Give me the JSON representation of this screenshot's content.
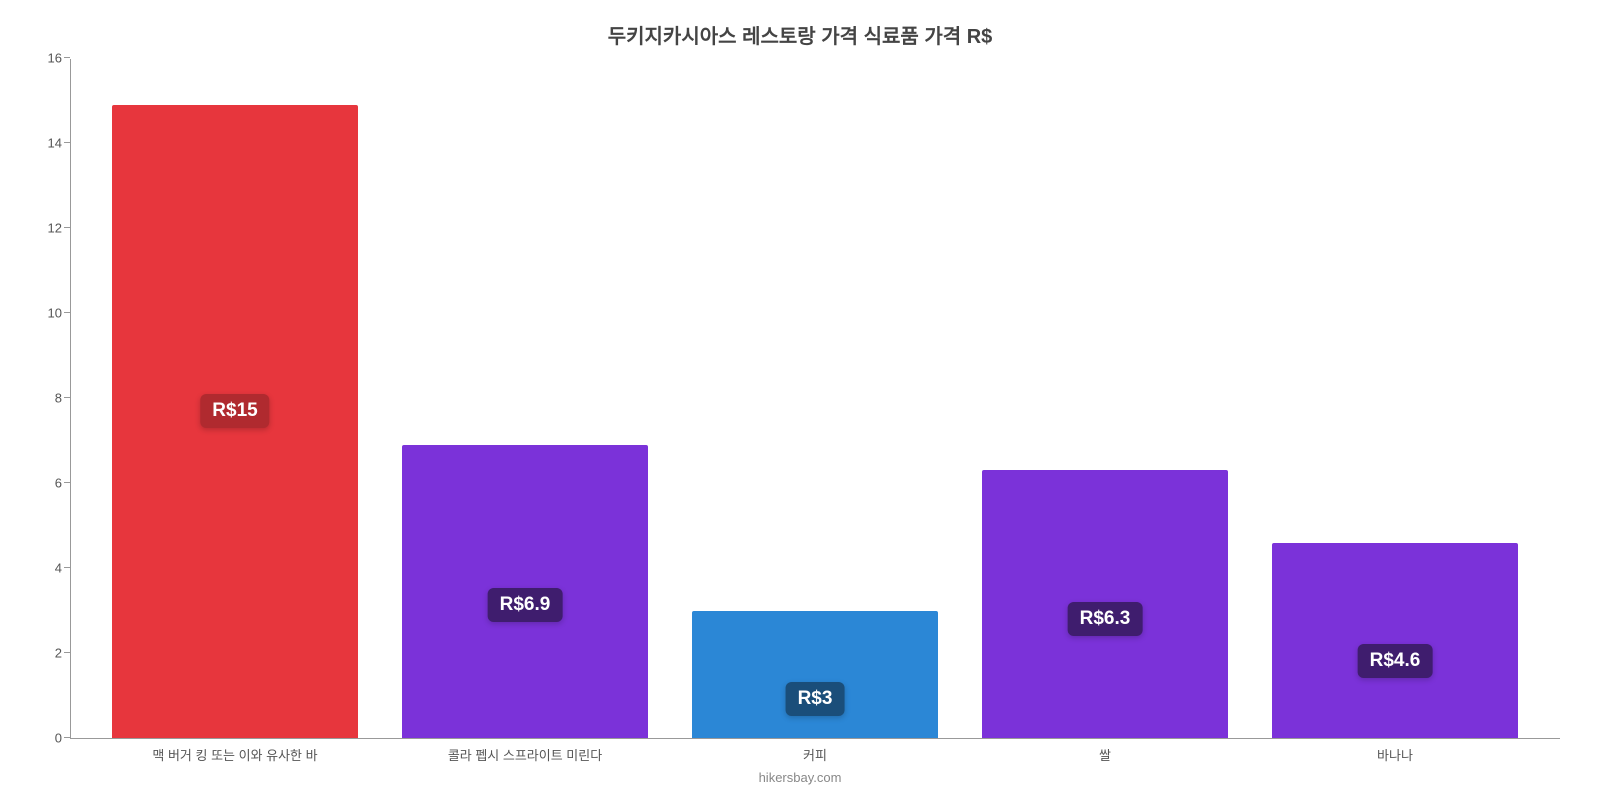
{
  "chart": {
    "type": "bar",
    "title": "두키지카시아스 레스토랑 가격 식료품 가격 R$",
    "title_fontsize": 20,
    "title_color": "#444444",
    "background_color": "#ffffff",
    "attribution": "hikersbay.com",
    "attribution_color": "#888888",
    "y_axis": {
      "min": 0,
      "max": 16,
      "tick_step": 2,
      "ticks": [
        0,
        2,
        4,
        6,
        8,
        10,
        12,
        14,
        16
      ],
      "tick_fontsize": 13,
      "tick_color": "#555555",
      "axis_line_color": "#999999"
    },
    "x_axis": {
      "tick_fontsize": 13,
      "tick_color": "#555555"
    },
    "bar_width_pct": 85,
    "data_label": {
      "fontsize": 19,
      "text_color": "#ffffff",
      "border_radius": 6,
      "vertical_pos_ratio": 0.43
    },
    "series": [
      {
        "category": "맥 버거 킹 또는 이와 유사한 바",
        "value": 14.9,
        "display_label": "R$15",
        "bar_color": "#e7363d",
        "label_bg_color": "#b02a2f"
      },
      {
        "category": "콜라 펩시 스프라이트 미린다",
        "value": 6.9,
        "display_label": "R$6.9",
        "bar_color": "#7b32d9",
        "label_bg_color": "#3f1d6e"
      },
      {
        "category": "커피",
        "value": 3.0,
        "display_label": "R$3",
        "bar_color": "#2b87d6",
        "label_bg_color": "#1a4e7a"
      },
      {
        "category": "쌀",
        "value": 6.3,
        "display_label": "R$6.3",
        "bar_color": "#7b32d9",
        "label_bg_color": "#3f1d6e"
      },
      {
        "category": "바나나",
        "value": 4.6,
        "display_label": "R$4.6",
        "bar_color": "#7b32d9",
        "label_bg_color": "#3f1d6e"
      }
    ]
  }
}
